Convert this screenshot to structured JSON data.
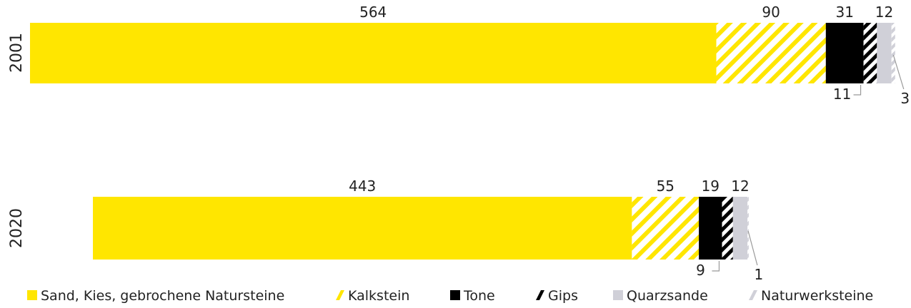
{
  "chart_data": {
    "type": "bar",
    "orientation": "horizontal",
    "stacked": true,
    "categories": [
      "2001",
      "2020"
    ],
    "series": [
      {
        "name": "Sand, Kies, gebrochene Natursteine",
        "values": [
          564,
          443
        ],
        "color": "#FFE600",
        "pattern": "solid"
      },
      {
        "name": "Kalkstein",
        "values": [
          90,
          55
        ],
        "color": "#FFE600",
        "pattern": "hatch"
      },
      {
        "name": "Tone",
        "values": [
          31,
          19
        ],
        "color": "#000000",
        "pattern": "solid"
      },
      {
        "name": "Gips",
        "values": [
          11,
          9
        ],
        "color": "#000000",
        "pattern": "hatch"
      },
      {
        "name": "Quarzsande",
        "values": [
          12,
          12
        ],
        "color": "#D0D0D8",
        "pattern": "solid"
      },
      {
        "name": "Naturwerksteine",
        "values": [
          3,
          1
        ],
        "color": "#D0D0D8",
        "pattern": "hatch"
      }
    ],
    "legend_position": "bottom",
    "grid": false
  }
}
